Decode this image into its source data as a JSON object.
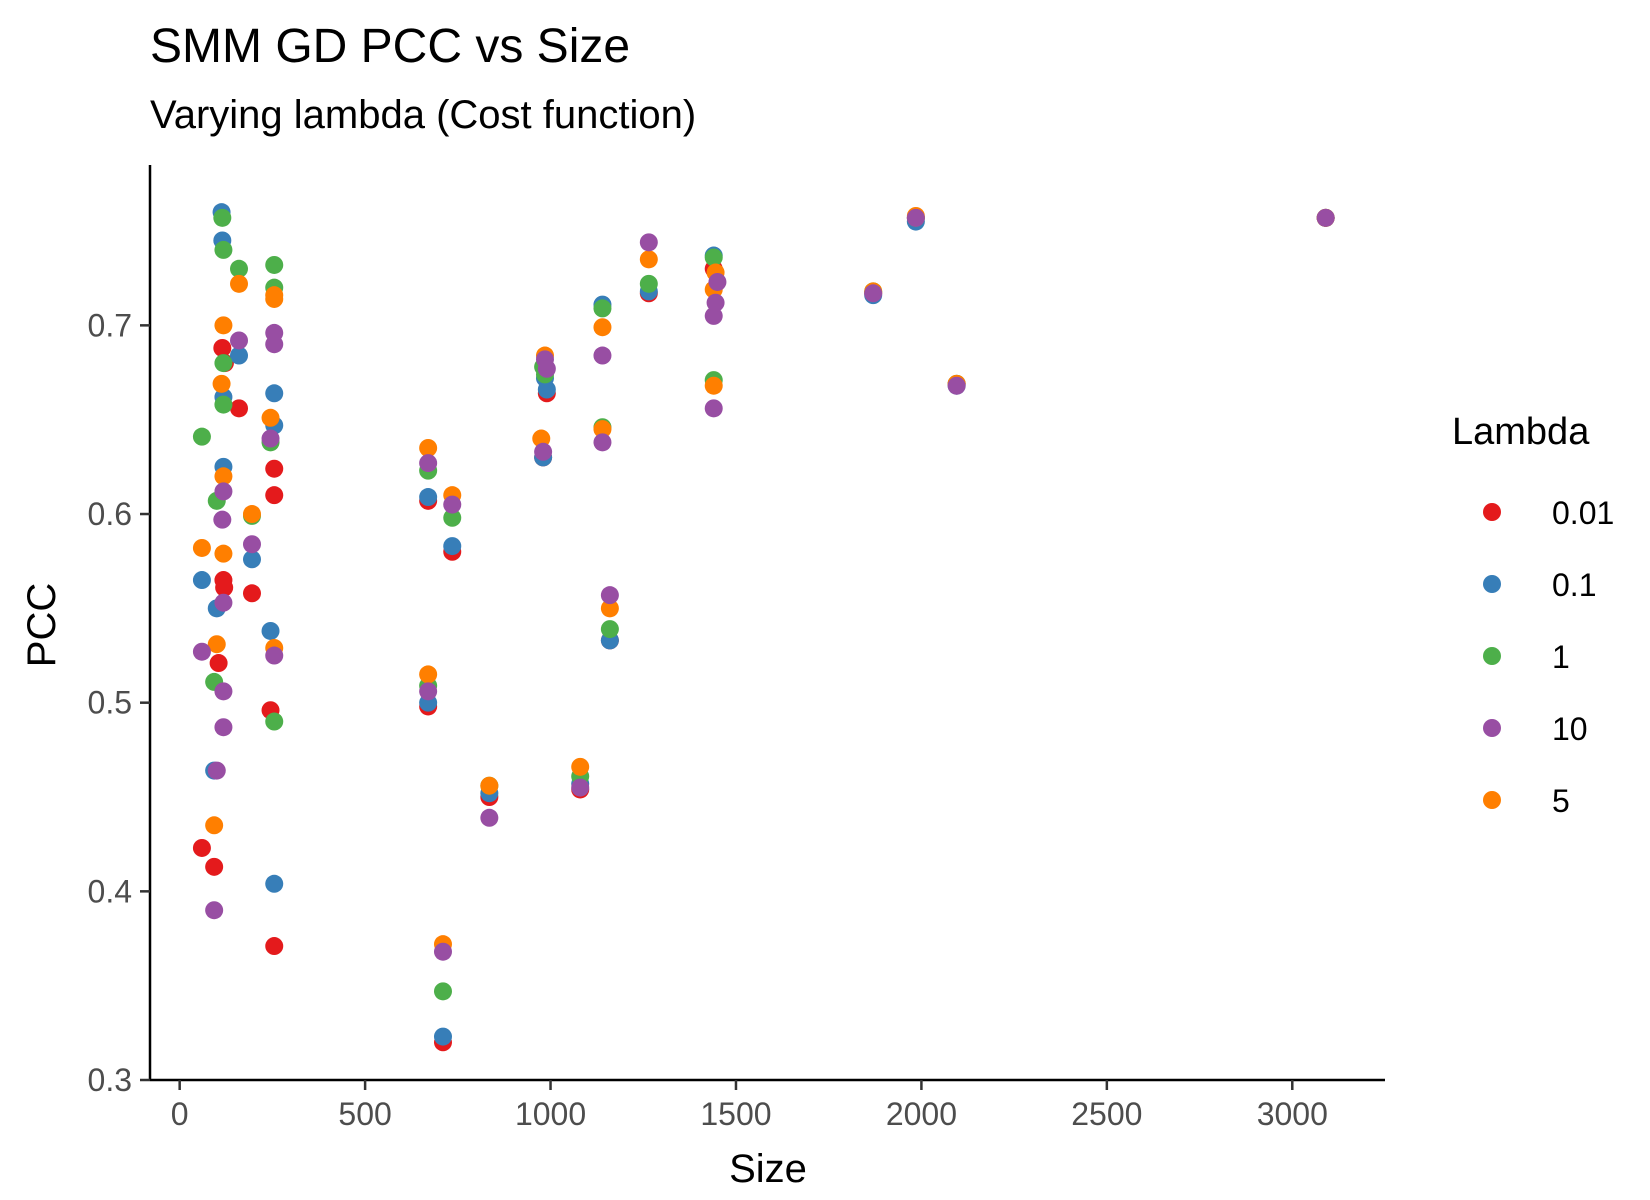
{
  "chart_data": {
    "type": "scatter",
    "title": "SMM GD PCC vs Size",
    "subtitle": "Varying lambda (Cost function)",
    "xlabel": "Size",
    "ylabel": "PCC",
    "xlim": [
      -80,
      3250
    ],
    "ylim": [
      0.3,
      0.785
    ],
    "xticks": [
      0,
      500,
      1000,
      1500,
      2000,
      2500,
      3000
    ],
    "xtick_labels": [
      "0",
      "500",
      "1000",
      "1500",
      "2000",
      "2500",
      "3000"
    ],
    "yticks": [
      0.3,
      0.4,
      0.5,
      0.6,
      0.7
    ],
    "ytick_labels": [
      "0.3",
      "0.4",
      "0.5",
      "0.6",
      "0.7"
    ],
    "grid": false,
    "legend": {
      "title": "Lambda",
      "position": "right"
    },
    "series": [
      {
        "name": "0.01",
        "color": "#e41a1c",
        "points": [
          [
            60,
            0.423
          ],
          [
            93,
            0.413
          ],
          [
            105,
            0.521
          ],
          [
            115,
            0.688
          ],
          [
            118,
            0.565
          ],
          [
            120,
            0.561
          ],
          [
            122,
            0.68
          ],
          [
            160,
            0.656
          ],
          [
            195,
            0.558
          ],
          [
            245,
            0.496
          ],
          [
            255,
            0.624
          ],
          [
            255,
            0.61
          ],
          [
            255,
            0.371
          ],
          [
            670,
            0.607
          ],
          [
            670,
            0.498
          ],
          [
            710,
            0.32
          ],
          [
            735,
            0.58
          ],
          [
            835,
            0.45
          ],
          [
            980,
            0.63
          ],
          [
            990,
            0.664
          ],
          [
            1080,
            0.454
          ],
          [
            1160,
            0.533
          ],
          [
            1265,
            0.717
          ],
          [
            1440,
            0.73
          ],
          [
            1870,
            0.717
          ],
          [
            1985,
            0.757
          ],
          [
            2095,
            0.669
          ],
          [
            3090,
            0.757
          ]
        ]
      },
      {
        "name": "0.1",
        "color": "#377eb8",
        "points": [
          [
            60,
            0.565
          ],
          [
            93,
            0.464
          ],
          [
            100,
            0.55
          ],
          [
            113,
            0.76
          ],
          [
            115,
            0.745
          ],
          [
            118,
            0.625
          ],
          [
            118,
            0.662
          ],
          [
            160,
            0.684
          ],
          [
            195,
            0.576
          ],
          [
            245,
            0.538
          ],
          [
            255,
            0.664
          ],
          [
            255,
            0.647
          ],
          [
            255,
            0.404
          ],
          [
            670,
            0.609
          ],
          [
            670,
            0.5
          ],
          [
            710,
            0.323
          ],
          [
            735,
            0.583
          ],
          [
            835,
            0.452
          ],
          [
            980,
            0.63
          ],
          [
            985,
            0.672
          ],
          [
            990,
            0.666
          ],
          [
            1080,
            0.457
          ],
          [
            1140,
            0.711
          ],
          [
            1160,
            0.533
          ],
          [
            1265,
            0.718
          ],
          [
            1440,
            0.737
          ],
          [
            1870,
            0.716
          ],
          [
            1985,
            0.755
          ],
          [
            2095,
            0.668
          ],
          [
            3090,
            0.757
          ]
        ]
      },
      {
        "name": "1",
        "color": "#4daf4a",
        "points": [
          [
            60,
            0.641
          ],
          [
            93,
            0.511
          ],
          [
            100,
            0.607
          ],
          [
            115,
            0.757
          ],
          [
            118,
            0.74
          ],
          [
            118,
            0.68
          ],
          [
            118,
            0.658
          ],
          [
            160,
            0.73
          ],
          [
            195,
            0.599
          ],
          [
            245,
            0.638
          ],
          [
            255,
            0.732
          ],
          [
            255,
            0.72
          ],
          [
            255,
            0.49
          ],
          [
            670,
            0.623
          ],
          [
            670,
            0.509
          ],
          [
            710,
            0.347
          ],
          [
            735,
            0.598
          ],
          [
            835,
            0.456
          ],
          [
            980,
            0.678
          ],
          [
            985,
            0.674
          ],
          [
            1080,
            0.461
          ],
          [
            1140,
            0.709
          ],
          [
            1140,
            0.646
          ],
          [
            1160,
            0.539
          ],
          [
            1265,
            0.722
          ],
          [
            1440,
            0.671
          ],
          [
            1440,
            0.736
          ],
          [
            1870,
            0.718
          ],
          [
            1985,
            0.757
          ],
          [
            2095,
            0.669
          ],
          [
            3090,
            0.757
          ]
        ]
      },
      {
        "name": "10",
        "color": "#984ea3",
        "points": [
          [
            60,
            0.527
          ],
          [
            93,
            0.39
          ],
          [
            100,
            0.464
          ],
          [
            115,
            0.597
          ],
          [
            118,
            0.612
          ],
          [
            118,
            0.553
          ],
          [
            118,
            0.506
          ],
          [
            118,
            0.487
          ],
          [
            160,
            0.692
          ],
          [
            195,
            0.584
          ],
          [
            245,
            0.64
          ],
          [
            255,
            0.696
          ],
          [
            255,
            0.69
          ],
          [
            255,
            0.525
          ],
          [
            670,
            0.627
          ],
          [
            670,
            0.506
          ],
          [
            710,
            0.368
          ],
          [
            735,
            0.605
          ],
          [
            835,
            0.439
          ],
          [
            980,
            0.633
          ],
          [
            985,
            0.682
          ],
          [
            990,
            0.677
          ],
          [
            1080,
            0.455
          ],
          [
            1140,
            0.684
          ],
          [
            1140,
            0.638
          ],
          [
            1160,
            0.557
          ],
          [
            1265,
            0.744
          ],
          [
            1440,
            0.656
          ],
          [
            1440,
            0.705
          ],
          [
            1445,
            0.712
          ],
          [
            1450,
            0.723
          ],
          [
            1870,
            0.717
          ],
          [
            1985,
            0.757
          ],
          [
            2095,
            0.668
          ],
          [
            3090,
            0.757
          ]
        ]
      },
      {
        "name": "5",
        "color": "#ff7f00",
        "points": [
          [
            60,
            0.582
          ],
          [
            93,
            0.435
          ],
          [
            100,
            0.531
          ],
          [
            113,
            0.669
          ],
          [
            118,
            0.7
          ],
          [
            118,
            0.62
          ],
          [
            118,
            0.579
          ],
          [
            160,
            0.722
          ],
          [
            195,
            0.6
          ],
          [
            245,
            0.651
          ],
          [
            255,
            0.716
          ],
          [
            255,
            0.714
          ],
          [
            255,
            0.529
          ],
          [
            670,
            0.635
          ],
          [
            670,
            0.515
          ],
          [
            710,
            0.372
          ],
          [
            735,
            0.61
          ],
          [
            835,
            0.456
          ],
          [
            975,
            0.64
          ],
          [
            985,
            0.684
          ],
          [
            1080,
            0.466
          ],
          [
            1140,
            0.699
          ],
          [
            1140,
            0.645
          ],
          [
            1160,
            0.55
          ],
          [
            1265,
            0.735
          ],
          [
            1440,
            0.668
          ],
          [
            1440,
            0.719
          ],
          [
            1445,
            0.728
          ],
          [
            1870,
            0.718
          ],
          [
            1985,
            0.758
          ],
          [
            2095,
            0.669
          ],
          [
            3090,
            0.757
          ]
        ]
      }
    ]
  }
}
